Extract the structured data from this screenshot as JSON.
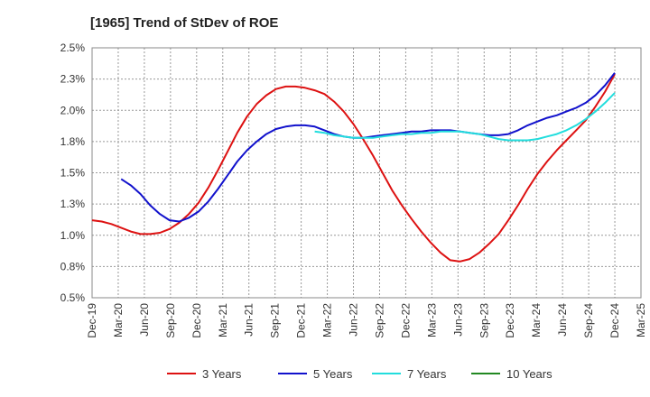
{
  "chart_data": {
    "type": "line",
    "title": "[1965]  Trend of StDev of ROE",
    "xlabel": "",
    "ylabel": "",
    "x_ticks": [
      "Dec-19",
      "Mar-20",
      "Jun-20",
      "Sep-20",
      "Dec-20",
      "Mar-21",
      "Jun-21",
      "Sep-21",
      "Dec-21",
      "Mar-22",
      "Jun-22",
      "Sep-22",
      "Dec-22",
      "Mar-23",
      "Jun-23",
      "Sep-23",
      "Dec-23",
      "Mar-24",
      "Jun-24",
      "Sep-24",
      "Dec-24",
      "Mar-25"
    ],
    "y_ticks": [
      "0.5%",
      "0.8%",
      "1.0%",
      "1.3%",
      "1.5%",
      "1.8%",
      "2.0%",
      "2.3%",
      "2.5%"
    ],
    "ylim": [
      0.5,
      2.5
    ],
    "grid": true,
    "legend_position": "bottom",
    "series": [
      {
        "name": "3 Years",
        "color": "#dd1111",
        "values": [
          1.12,
          1.11,
          1.09,
          1.06,
          1.03,
          1.01,
          1.01,
          1.02,
          1.05,
          1.1,
          1.17,
          1.26,
          1.38,
          1.52,
          1.67,
          1.82,
          1.95,
          2.05,
          2.12,
          2.17,
          2.19,
          2.19,
          2.18,
          2.16,
          2.13,
          2.07,
          1.99,
          1.89,
          1.77,
          1.64,
          1.5,
          1.36,
          1.24,
          1.13,
          1.03,
          0.94,
          0.86,
          0.8,
          0.79,
          0.81,
          0.86,
          0.93,
          1.01,
          1.12,
          1.24,
          1.37,
          1.49,
          1.59,
          1.68,
          1.76,
          1.84,
          1.92,
          2.03,
          2.15,
          2.29
        ]
      },
      {
        "name": "5 Years",
        "color": "#1111cc",
        "values": [
          null,
          null,
          null,
          1.45,
          1.4,
          1.33,
          1.24,
          1.17,
          1.12,
          1.11,
          1.14,
          1.19,
          1.27,
          1.37,
          1.48,
          1.59,
          1.68,
          1.75,
          1.81,
          1.85,
          1.87,
          1.88,
          1.88,
          1.87,
          1.84,
          1.81,
          1.79,
          1.78,
          1.78,
          1.79,
          1.8,
          1.81,
          1.82,
          1.83,
          1.83,
          1.84,
          1.84,
          1.84,
          1.83,
          1.82,
          1.81,
          1.8,
          1.8,
          1.81,
          1.84,
          1.88,
          1.91,
          1.94,
          1.96,
          1.99,
          2.02,
          2.06,
          2.12,
          2.2,
          2.3
        ]
      },
      {
        "name": "7 Years",
        "color": "#22dddd",
        "values": [
          null,
          null,
          null,
          null,
          null,
          null,
          null,
          null,
          null,
          null,
          null,
          null,
          null,
          null,
          null,
          null,
          null,
          null,
          null,
          null,
          null,
          null,
          null,
          1.83,
          1.82,
          1.8,
          1.79,
          1.78,
          1.78,
          1.78,
          1.79,
          1.8,
          1.81,
          1.81,
          1.82,
          1.82,
          1.83,
          1.83,
          1.83,
          1.82,
          1.81,
          1.79,
          1.77,
          1.76,
          1.76,
          1.76,
          1.77,
          1.79,
          1.81,
          1.84,
          1.88,
          1.93,
          1.99,
          2.06,
          2.14
        ]
      },
      {
        "name": "10 Years",
        "color": "#228822",
        "values": []
      }
    ]
  }
}
